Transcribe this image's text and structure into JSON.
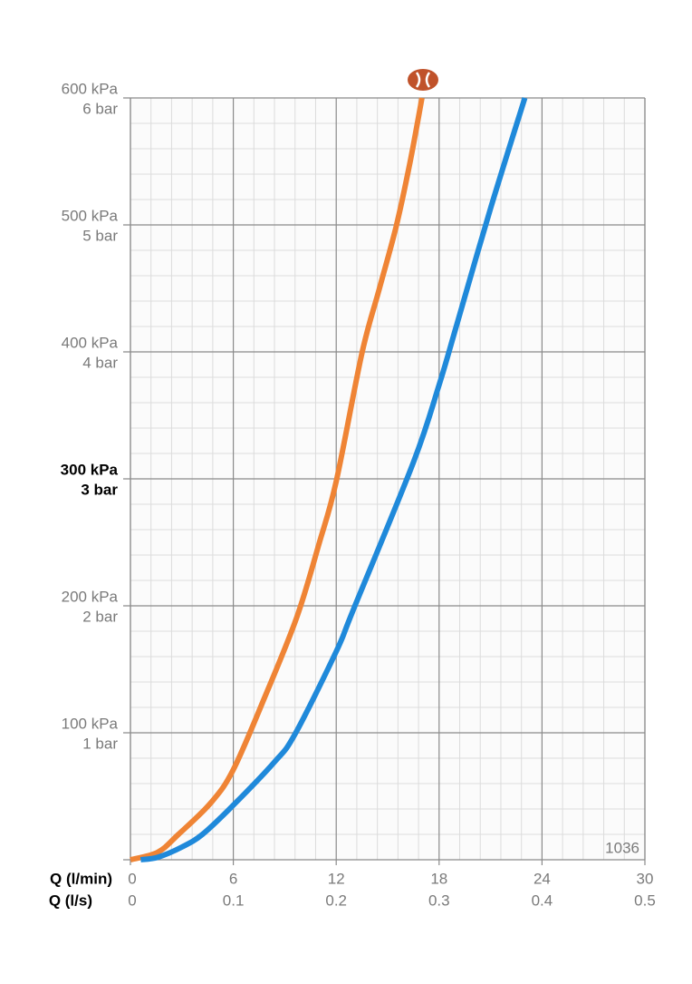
{
  "chart_data": {
    "type": "line",
    "x_labels": [
      "Q (l/min)",
      "Q (l/s)"
    ],
    "annotation": "1036",
    "xlim": [
      0,
      30
    ],
    "xticks": [
      0,
      6,
      12,
      18,
      24,
      30
    ],
    "x2lim": [
      0,
      0.5
    ],
    "x2ticks": [
      0,
      0.1,
      0.2,
      0.3,
      0.4,
      0.5
    ],
    "ylim": [
      0,
      600
    ],
    "yticks": [
      {
        "value": 100,
        "label": "100 kPa"
      },
      {
        "value": 200,
        "label": "200 kPa"
      },
      {
        "value": 300,
        "label": "300 kPa"
      },
      {
        "value": 400,
        "label": "400 kPa"
      },
      {
        "value": 500,
        "label": "500 kPa"
      },
      {
        "value": 600,
        "label": "600 kPa"
      }
    ],
    "y2lim": [
      0,
      6
    ],
    "y2ticks": [
      {
        "value": 1,
        "label": "1 bar"
      },
      {
        "value": 2,
        "label": "2 bar"
      },
      {
        "value": 3,
        "label": "3 bar"
      },
      {
        "value": 4,
        "label": "4 bar"
      },
      {
        "value": 5,
        "label": "5 bar"
      },
      {
        "value": 6,
        "label": "6 bar"
      }
    ],
    "highlight_y": 300,
    "grid": true,
    "minor_grid_divisions": 5,
    "series": [
      {
        "color": "#ef8435",
        "x": [
          0,
          1.6,
          2.8,
          4.7,
          6,
          7.8,
          9.7,
          11,
          12,
          13.5,
          14.5,
          15.5,
          16.3,
          17
        ],
        "values": [
          0,
          6,
          20,
          45,
          71,
          127,
          191,
          249,
          298,
          399,
          449,
          499,
          549,
          600
        ]
      },
      {
        "color": "#1f89da",
        "x": [
          0.6,
          1.6,
          3,
          4.2,
          6,
          8.4,
          9.6,
          12,
          13,
          16.5,
          18,
          19,
          21,
          23
        ],
        "values": [
          0,
          2,
          10,
          20,
          43,
          77,
          99,
          164,
          197,
          313,
          374,
          420,
          513,
          600
        ]
      }
    ]
  }
}
